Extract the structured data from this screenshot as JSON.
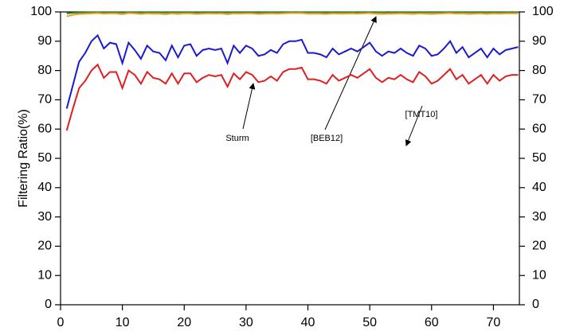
{
  "chart_data": {
    "type": "line",
    "y_label": "Filtering Ratio(%)",
    "annotations": [
      "Sturm",
      "[BEB12]",
      "[TMT10]"
    ],
    "x": [
      1,
      2,
      3,
      4,
      5,
      6,
      7,
      8,
      9,
      10,
      11,
      12,
      13,
      14,
      15,
      16,
      17,
      18,
      19,
      20,
      21,
      22,
      23,
      24,
      25,
      26,
      27,
      28,
      29,
      30,
      31,
      32,
      33,
      34,
      35,
      36,
      37,
      38,
      39,
      40,
      41,
      42,
      43,
      44,
      45,
      46,
      47,
      48,
      49,
      50,
      51,
      52,
      53,
      54,
      55,
      56,
      57,
      58,
      59,
      60,
      61,
      62,
      63,
      64,
      65,
      66,
      67,
      68,
      69,
      70,
      71,
      72,
      73,
      74
    ],
    "series": [
      {
        "color": "#2a8a2a",
        "values": [
          99.5,
          99.7,
          99.8,
          99.8,
          99.9,
          99.9,
          99.8,
          99.9,
          99.9,
          99.8,
          99.9,
          99.9,
          99.8,
          99.9,
          99.9,
          99.9,
          99.8,
          99.9,
          99.9,
          99.9,
          99.9,
          99.8,
          99.9,
          99.9,
          99.9,
          99.9,
          99.8,
          99.9,
          99.9,
          99.9,
          99.9,
          99.8,
          99.9,
          99.9,
          99.9,
          99.9,
          99.9,
          99.8,
          99.9,
          99.9,
          99.9,
          99.9,
          99.8,
          99.9,
          99.9,
          99.9,
          99.9,
          99.8,
          99.9,
          99.9,
          99.9,
          99.9,
          99.8,
          99.9,
          99.9,
          99.9,
          99.9,
          99.8,
          99.9,
          99.9,
          99.9,
          99.9,
          99.8,
          99.9,
          99.9,
          99.9,
          99.9,
          99.8,
          99.9,
          99.9,
          99.9,
          99.9,
          99.8,
          99.9
        ]
      },
      {
        "color": "#f0a020",
        "values": [
          98.5,
          99,
          99.3,
          99.4,
          99.5,
          99.6,
          99.4,
          99.5,
          99.5,
          99.2,
          99.6,
          99.5,
          99.3,
          99.5,
          99.4,
          99.4,
          99.2,
          99.5,
          99.3,
          99.5,
          99.5,
          99.3,
          99.4,
          99.5,
          99.4,
          99.5,
          99.2,
          99.5,
          99.4,
          99.5,
          99.5,
          99.3,
          99.4,
          99.5,
          99.4,
          99.5,
          99.6,
          99.6,
          99.6,
          99.4,
          99.4,
          99.4,
          99.3,
          99.5,
          99.4,
          99.4,
          99.5,
          99.4,
          99.5,
          99.6,
          99.4,
          99.3,
          99.4,
          99.4,
          99.5,
          99.4,
          99.3,
          99.5,
          99.4,
          99.3,
          99.4,
          99.5,
          99.6,
          99.4,
          99.5,
          99.3,
          99.4,
          99.5,
          99.3,
          99.5,
          99.4,
          99.5,
          99.5,
          99.5
        ]
      },
      {
        "color": "#1a1ad0",
        "values": [
          67,
          75,
          83,
          86,
          90,
          92,
          87.5,
          89.5,
          89,
          82.5,
          89.5,
          87,
          84,
          88.5,
          86.5,
          86,
          83.5,
          88.5,
          84.5,
          88.5,
          89,
          85,
          87,
          87.5,
          87,
          87.5,
          82.5,
          88.5,
          86,
          88.5,
          87.5,
          85,
          85.5,
          87,
          86,
          89,
          90,
          90,
          90.5,
          86,
          86,
          85.5,
          84.5,
          87.5,
          85.5,
          86.5,
          87.5,
          86.5,
          88,
          89.5,
          86.5,
          85,
          86.5,
          86,
          87.5,
          86,
          85,
          88.5,
          87.5,
          85,
          85.5,
          87.5,
          90,
          86,
          88,
          84.5,
          86,
          87.5,
          84.5,
          87.5,
          85.5,
          87,
          87.5,
          88
        ]
      },
      {
        "color": "#e02020",
        "values": [
          59.5,
          67,
          74,
          76.5,
          80,
          82,
          77.5,
          79.5,
          79.5,
          74,
          80,
          78.5,
          75.5,
          79.5,
          77.5,
          77,
          75.5,
          79,
          75.5,
          79,
          79,
          76,
          77.5,
          78.5,
          78,
          78.5,
          74.5,
          79,
          77,
          79.5,
          78.5,
          76,
          76.5,
          78,
          76.5,
          79.5,
          80.5,
          80.5,
          81,
          77,
          77,
          76.5,
          75.5,
          78.5,
          76.5,
          77.5,
          78.5,
          77.5,
          79,
          80.5,
          77.5,
          76,
          77.5,
          77,
          78.5,
          77,
          76,
          79.5,
          78,
          75.5,
          76.5,
          78.5,
          80.5,
          77,
          78.5,
          75.5,
          77,
          78.5,
          75.5,
          78.5,
          76.5,
          78,
          78.5,
          78.5
        ]
      }
    ],
    "xlim": [
      0,
      74.2
    ],
    "xticks": [
      0,
      10,
      20,
      30,
      40,
      50,
      60,
      70
    ],
    "ylim": [
      0,
      100
    ],
    "yticks": [
      0,
      10,
      20,
      30,
      40,
      50,
      60,
      70,
      80,
      90,
      100
    ],
    "y2lim": [
      0,
      100
    ],
    "y2ticks": [
      0,
      10,
      20,
      30,
      40,
      50,
      60,
      70,
      80,
      90,
      100
    ]
  }
}
